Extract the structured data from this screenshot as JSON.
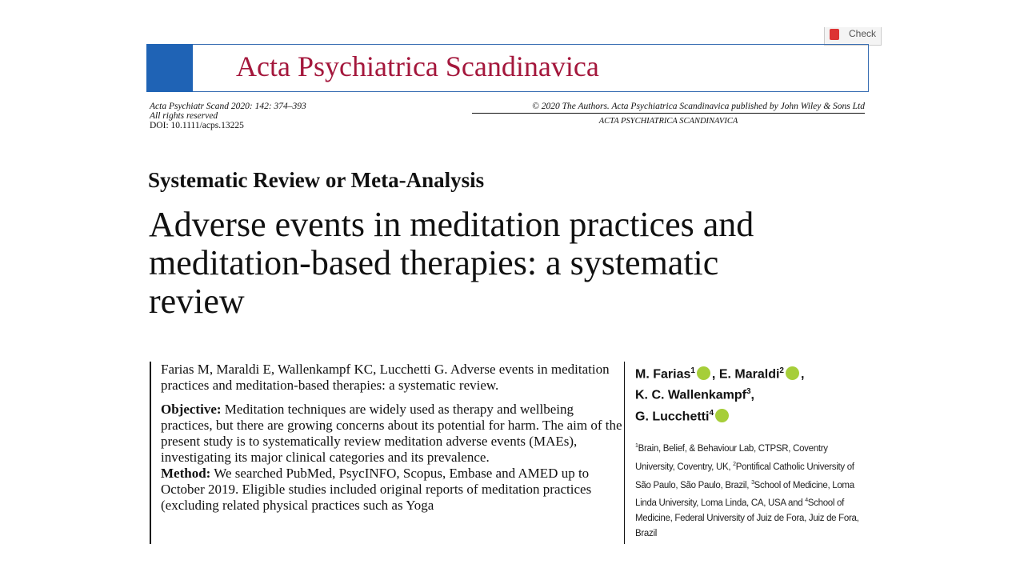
{
  "header": {
    "check": "Check",
    "journal": "Acta Psychiatrica Scandinavica"
  },
  "meta": {
    "citation": "Acta Psychiatr Scand 2020: 142: 374–393",
    "rights": "All rights reserved",
    "doi": "DOI: 10.1111/acps.13225",
    "copyright": "© 2020 The Authors. Acta Psychiatrica Scandinavica published by John Wiley & Sons Ltd",
    "journal_caps": "ACTA PSYCHIATRICA SCANDINAVICA"
  },
  "article": {
    "section": "Systematic Review or Meta-Analysis",
    "title_lines": [
      "Adverse events in meditation practices and",
      "meditation-based therapies: a systematic",
      "review"
    ]
  },
  "abstract": {
    "citation": "Farias M, Maraldi E, Wallenkampf KC, Lucchetti G. Adverse events in meditation practices and meditation-based therapies: a systematic review.",
    "objective": {
      "label": "Objective:",
      "text": "Meditation techniques are widely used as therapy and wellbeing practices, but there are growing concerns about its potential for harm. The aim of the present study is to systematically review meditation adverse events (MAEs), investigating its major clinical categories and its prevalence."
    },
    "method": {
      "label": "Method:",
      "text": "We searched PubMed, PsycINFO, Scopus, Embase and AMED up to October 2019. Eligible studies included original reports of meditation practices (excluding related physical practices such as Yoga"
    }
  },
  "authors": [
    {
      "name": "M. Farias",
      "affiliation": "1",
      "suffix": ","
    },
    {
      "name": "E. Maraldi",
      "affiliation": "2",
      "suffix": ","
    },
    {
      "name": "K. C. Wallenkampf",
      "affiliation": "3",
      "suffix": ","
    },
    {
      "name": "G. Lucchetti",
      "affiliation": "4"
    }
  ],
  "affiliations": [
    {
      "mark": "1",
      "text": "Brain, Belief, & Behaviour Lab, CTPSR, Coventry University, Coventry, UK, "
    },
    {
      "mark": "2",
      "text": "Pontifical Catholic University of São Paulo, São Paulo, Brazil, "
    },
    {
      "mark": "3",
      "text": "School of Medicine, Loma Linda University, Loma Linda, CA,  USA and "
    },
    {
      "mark": "4",
      "text": "School of Medicine, Federal University of Juiz de Fora, Juiz de Fora, Brazil"
    }
  ]
}
